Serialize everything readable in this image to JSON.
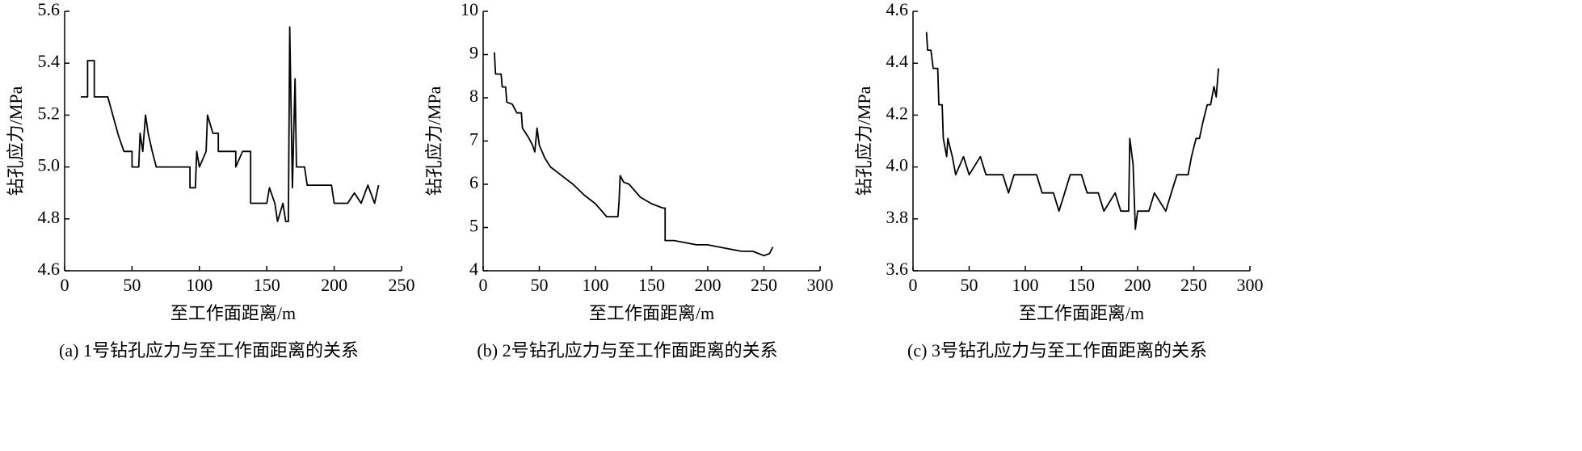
{
  "chart_data": [
    {
      "type": "line",
      "caption": "(a) 1号钻孔应力与至工作面距离的关系",
      "xlabel": "至工作面距离/m",
      "ylabel": "钻孔应力/MPa",
      "color": "#000000",
      "xlim": [
        0,
        250
      ],
      "xticks": [
        0,
        50,
        100,
        150,
        200,
        250
      ],
      "ylim": [
        4.6,
        5.6
      ],
      "yticks": [
        4.6,
        4.8,
        {
          "value": 5,
          "label": "5.0"
        },
        5.2,
        5.4,
        5.6
      ],
      "x": [
        12,
        17,
        17,
        22,
        22,
        32,
        40,
        44,
        50,
        50,
        55,
        56,
        58,
        60,
        62,
        65,
        68,
        93,
        93,
        97,
        98,
        100,
        105,
        106,
        110,
        114,
        114,
        127,
        127,
        132,
        138,
        138,
        150,
        152,
        156,
        158,
        162,
        164,
        166,
        167,
        169,
        171,
        172,
        178,
        180,
        190,
        198,
        200,
        205,
        210,
        215,
        220,
        225,
        230,
        233
      ],
      "values": [
        5.27,
        5.27,
        5.41,
        5.41,
        5.27,
        5.27,
        5.12,
        5.06,
        5.06,
        5.0,
        5.0,
        5.13,
        5.06,
        5.2,
        5.13,
        5.06,
        5.0,
        5.0,
        4.92,
        4.92,
        5.06,
        5.0,
        5.06,
        5.2,
        5.13,
        5.13,
        5.06,
        5.06,
        5.0,
        5.06,
        5.06,
        4.86,
        4.86,
        4.92,
        4.86,
        4.79,
        4.86,
        4.79,
        4.79,
        5.54,
        4.92,
        5.34,
        5.0,
        5.0,
        4.93,
        4.93,
        4.93,
        4.86,
        4.86,
        4.86,
        4.9,
        4.86,
        4.93,
        4.86,
        4.93
      ]
    },
    {
      "type": "line",
      "caption": "(b) 2号钻孔应力与至工作面距离的关系",
      "xlabel": "至工作面距离/m",
      "ylabel": "钻孔应力/MPa",
      "color": "#000000",
      "xlim": [
        0,
        300
      ],
      "xticks": [
        0,
        50,
        100,
        150,
        200,
        250,
        300
      ],
      "ylim": [
        4,
        10
      ],
      "yticks": [
        4,
        5,
        6,
        7,
        8,
        9,
        10
      ],
      "x": [
        10,
        11,
        16,
        17,
        20,
        21,
        26,
        30,
        34,
        35,
        40,
        44,
        46,
        48,
        50,
        55,
        60,
        70,
        80,
        90,
        100,
        105,
        110,
        120,
        121,
        122,
        125,
        130,
        135,
        140,
        150,
        160,
        162,
        162,
        170,
        180,
        190,
        200,
        210,
        220,
        230,
        240,
        250,
        255,
        258
      ],
      "values": [
        9.05,
        8.55,
        8.55,
        8.25,
        8.25,
        7.9,
        7.85,
        7.65,
        7.65,
        7.3,
        7.1,
        6.9,
        6.75,
        7.3,
        6.9,
        6.6,
        6.4,
        6.2,
        6.0,
        5.75,
        5.55,
        5.4,
        5.25,
        5.25,
        5.6,
        6.2,
        6.05,
        6.0,
        5.85,
        5.7,
        5.55,
        5.45,
        5.45,
        4.7,
        4.7,
        4.65,
        4.6,
        4.6,
        4.55,
        4.5,
        4.45,
        4.45,
        4.35,
        4.4,
        4.55
      ]
    },
    {
      "type": "line",
      "caption": "(c) 3号钻孔应力与至工作面距离的关系",
      "xlabel": "至工作面距离/m",
      "ylabel": "钻孔应力/MPa",
      "color": "#000000",
      "xlim": [
        0,
        300
      ],
      "xticks": [
        0,
        50,
        100,
        150,
        200,
        250,
        300
      ],
      "ylim": [
        3.6,
        4.6
      ],
      "yticks": [
        3.6,
        3.8,
        {
          "value": 4,
          "label": "4.0"
        },
        4.2,
        4.4,
        4.6
      ],
      "x": [
        12,
        13,
        16,
        18,
        22,
        23,
        26,
        27,
        30,
        31,
        35,
        38,
        45,
        50,
        60,
        65,
        80,
        85,
        90,
        110,
        115,
        125,
        130,
        135,
        140,
        150,
        155,
        165,
        170,
        180,
        185,
        192,
        193,
        196,
        198,
        200,
        205,
        210,
        215,
        225,
        230,
        235,
        245,
        248,
        252,
        255,
        258,
        262,
        265,
        268,
        270,
        272
      ],
      "values": [
        4.52,
        4.45,
        4.45,
        4.38,
        4.38,
        4.24,
        4.24,
        4.11,
        4.04,
        4.11,
        4.04,
        3.97,
        4.04,
        3.97,
        4.04,
        3.97,
        3.97,
        3.9,
        3.97,
        3.97,
        3.9,
        3.9,
        3.83,
        3.9,
        3.97,
        3.97,
        3.9,
        3.9,
        3.83,
        3.9,
        3.83,
        3.83,
        4.11,
        4.01,
        3.76,
        3.83,
        3.83,
        3.83,
        3.9,
        3.83,
        3.9,
        3.97,
        3.97,
        4.04,
        4.11,
        4.11,
        4.17,
        4.24,
        4.24,
        4.31,
        4.27,
        4.38
      ]
    }
  ]
}
